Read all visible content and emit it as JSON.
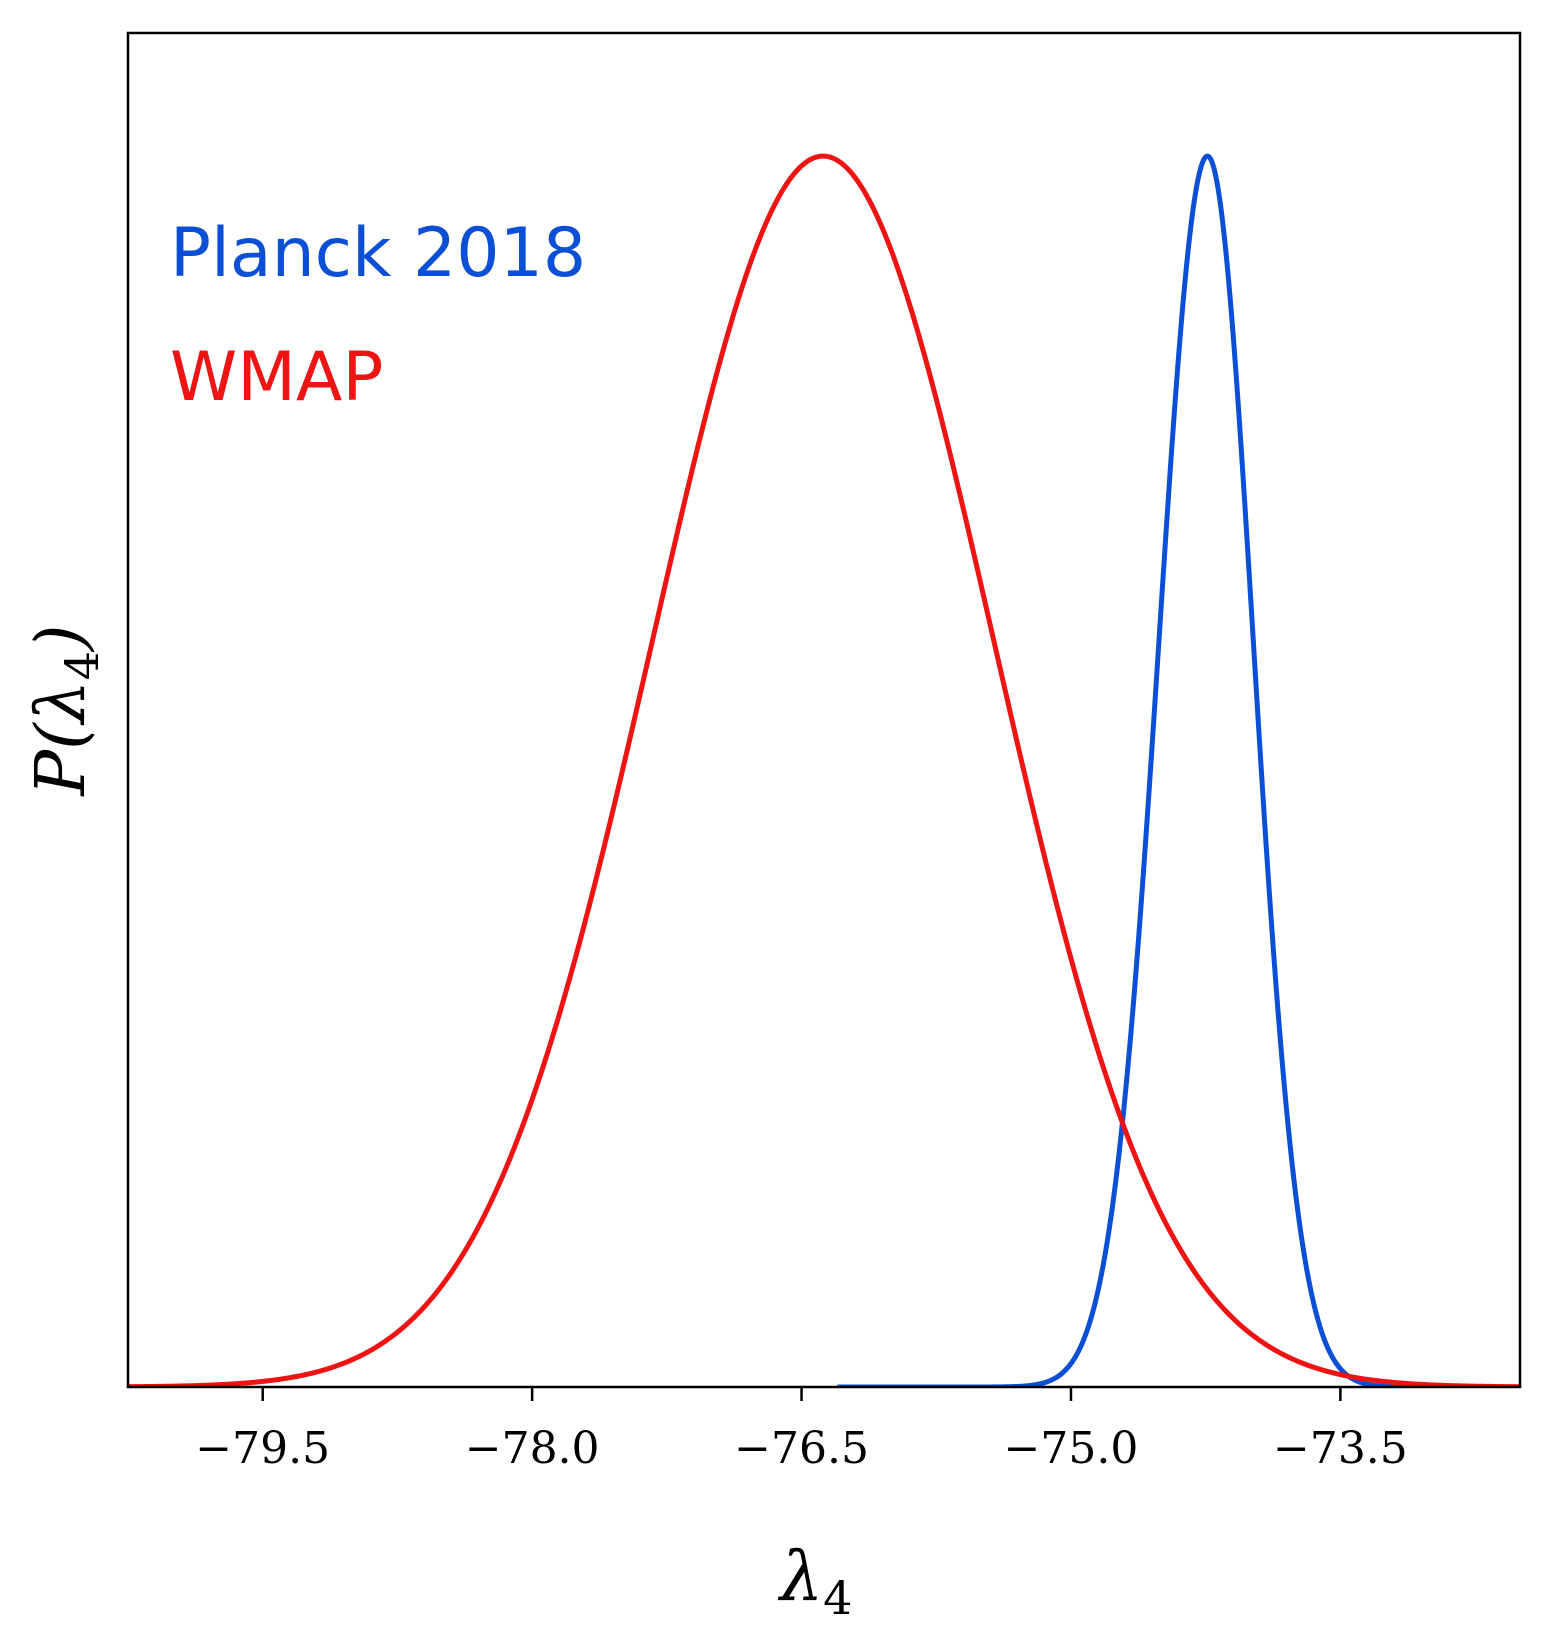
{
  "chart_data": {
    "type": "line",
    "title": "",
    "xlabel": "λ",
    "xlabel_subscript": "4",
    "ylabel": "P(λ",
    "ylabel_subscript": "4",
    "ylabel_close": ")",
    "xlim": [
      -80.25,
      -72.5
    ],
    "ylim": [
      0,
      1.1
    ],
    "xticks": [
      -79.5,
      -78.0,
      -76.5,
      -75.0,
      -73.5
    ],
    "xtick_labels": [
      "−79.5",
      "−78.0",
      "−76.5",
      "−75.0",
      "−73.5"
    ],
    "yticks": [],
    "grid": false,
    "legend_position": "top-left",
    "series": [
      {
        "name": "Planck 2018",
        "color": "#0a4fd6",
        "x_start": -76.3,
        "x_end": -72.5,
        "peak_x": -74.24,
        "peak_y": 1.0,
        "sigma_left": 0.27,
        "sigma_right": 0.255
      },
      {
        "name": "WMAP",
        "color": "#ef1414",
        "x_start": -80.25,
        "x_end": -72.5,
        "peak_x": -76.38,
        "peak_y": 1.0,
        "sigma_left": 0.95,
        "sigma_right": 0.95
      }
    ]
  }
}
